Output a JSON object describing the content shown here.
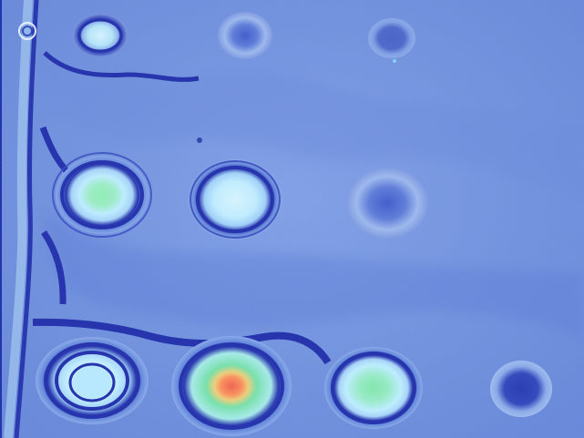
{
  "image": {
    "kind": "false-color intensity map",
    "colors": {
      "background_light": "#8fb0ea",
      "background_mid": "#6f8fdc",
      "background_dark": "#4f6fd0",
      "contour_dark": "#1d2aa8",
      "cyan_light": "#bfe9f1",
      "green": "#78e3a4",
      "orange": "#ff8f55",
      "red": "#f05a46",
      "yellow": "#f1d56d"
    },
    "spots": [
      {
        "name": "spot-top-left",
        "level": "medium"
      },
      {
        "name": "spot-top-middle",
        "level": "low"
      },
      {
        "name": "spot-top-right",
        "level": "very-low"
      },
      {
        "name": "spot-middle-left",
        "level": "high"
      },
      {
        "name": "spot-middle-center",
        "level": "high"
      },
      {
        "name": "spot-middle-right",
        "level": "low"
      },
      {
        "name": "spot-bottom-left",
        "level": "high"
      },
      {
        "name": "spot-bottom-center",
        "level": "very-high"
      },
      {
        "name": "spot-bottom-right-center",
        "level": "high"
      },
      {
        "name": "spot-bottom-right",
        "level": "low"
      }
    ]
  }
}
